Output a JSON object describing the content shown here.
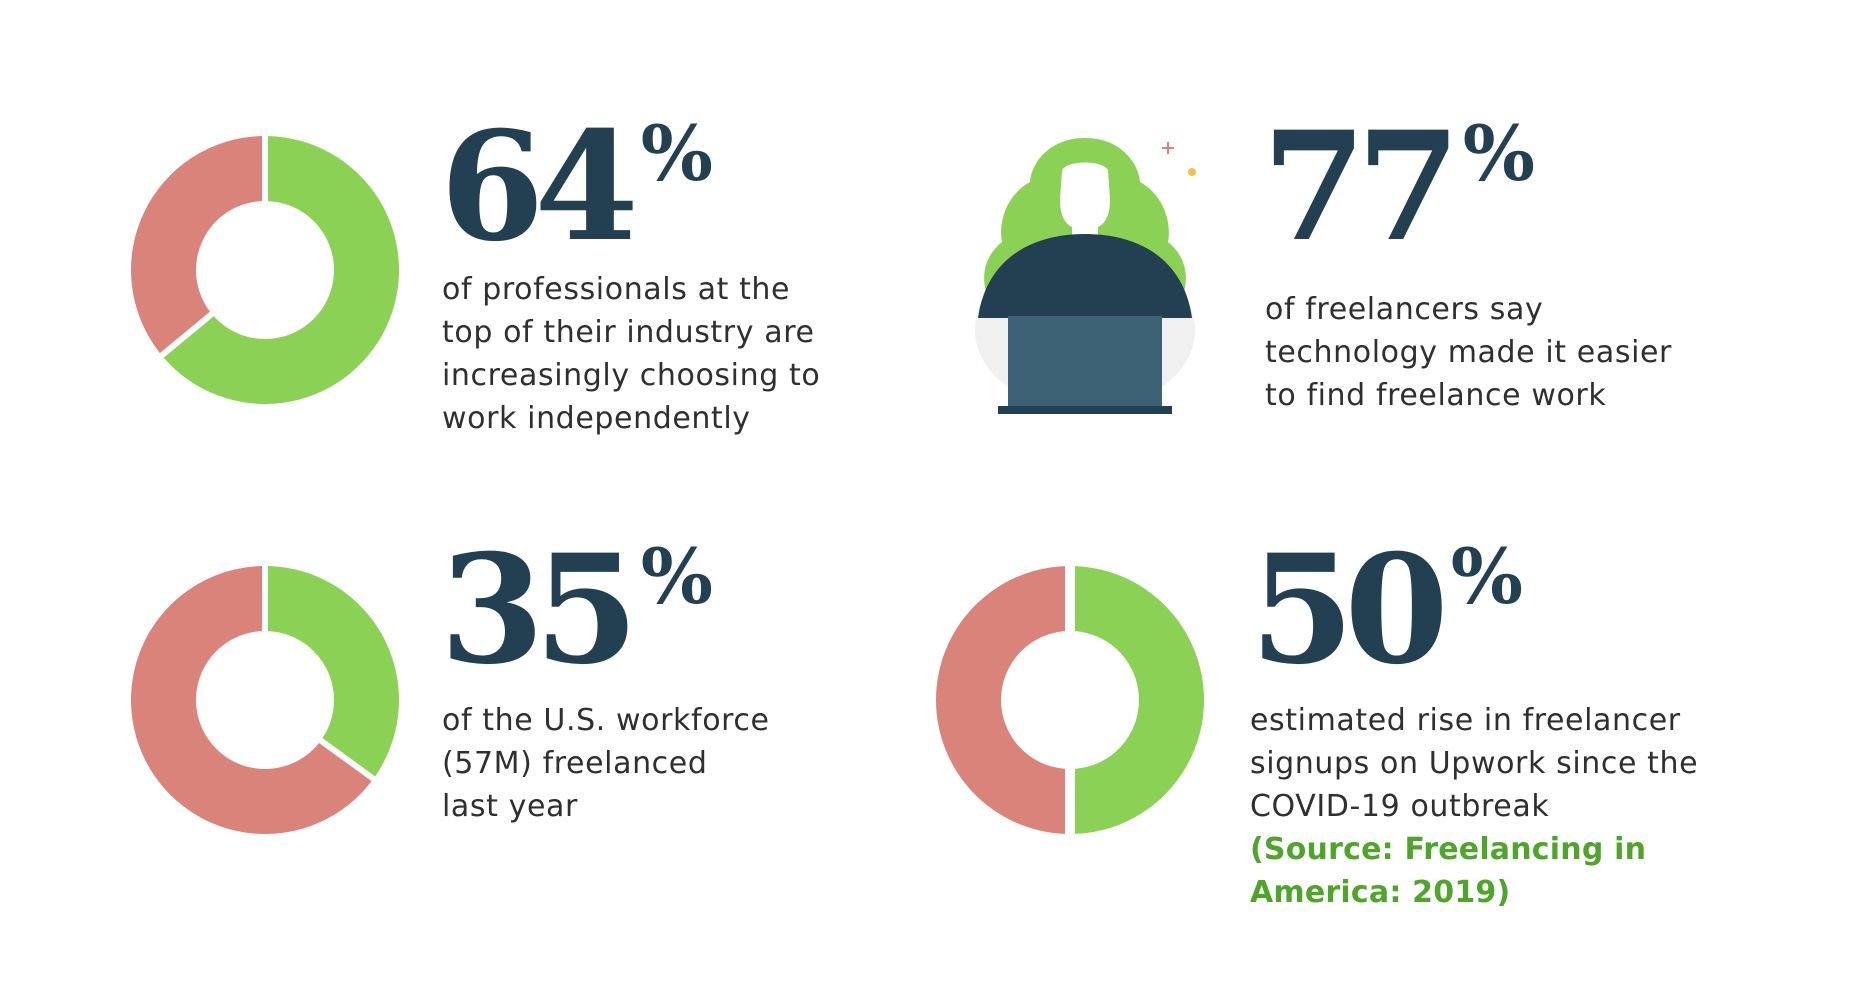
{
  "chart_data": [
    {
      "type": "pie",
      "title": "64%",
      "description": [
        "of professionals at the",
        "top of their industry are",
        "increasingly choosing to",
        "work independently"
      ],
      "values": [
        64,
        36
      ],
      "colors": [
        "#8bd156",
        "#d9837a"
      ]
    },
    {
      "type": "table",
      "title": "77%",
      "description": [
        "of freelancers say",
        "technology made it easier",
        "to find freelance work"
      ],
      "values": [
        77
      ]
    },
    {
      "type": "pie",
      "title": "35%",
      "description": [
        "of the U.S. workforce",
        "(57M) freelanced",
        "last year"
      ],
      "values": [
        35,
        65
      ],
      "colors": [
        "#8bd156",
        "#d9837a"
      ]
    },
    {
      "type": "pie",
      "title": "50%",
      "description": [
        "estimated rise in freelancer",
        "signups on Upwork since the",
        "COVID-19 outbreak"
      ],
      "values": [
        50,
        50
      ],
      "colors": [
        "#8bd156",
        "#d9837a"
      ]
    }
  ],
  "source": [
    "(Source: Freelancing in",
    "America: 2019)"
  ],
  "stats": [
    {
      "number": "64",
      "suffix": "%"
    },
    {
      "number": "77",
      "suffix": "%"
    },
    {
      "number": "35",
      "suffix": "%"
    },
    {
      "number": "50",
      "suffix": "%"
    }
  ],
  "colors": {
    "green": "#8bd156",
    "salmon": "#d9837a",
    "navy": "#233f52",
    "laptop": "#3e6275",
    "source_green": "#4fa52a"
  },
  "icons": {
    "illustration": "person-with-laptop-icon"
  }
}
